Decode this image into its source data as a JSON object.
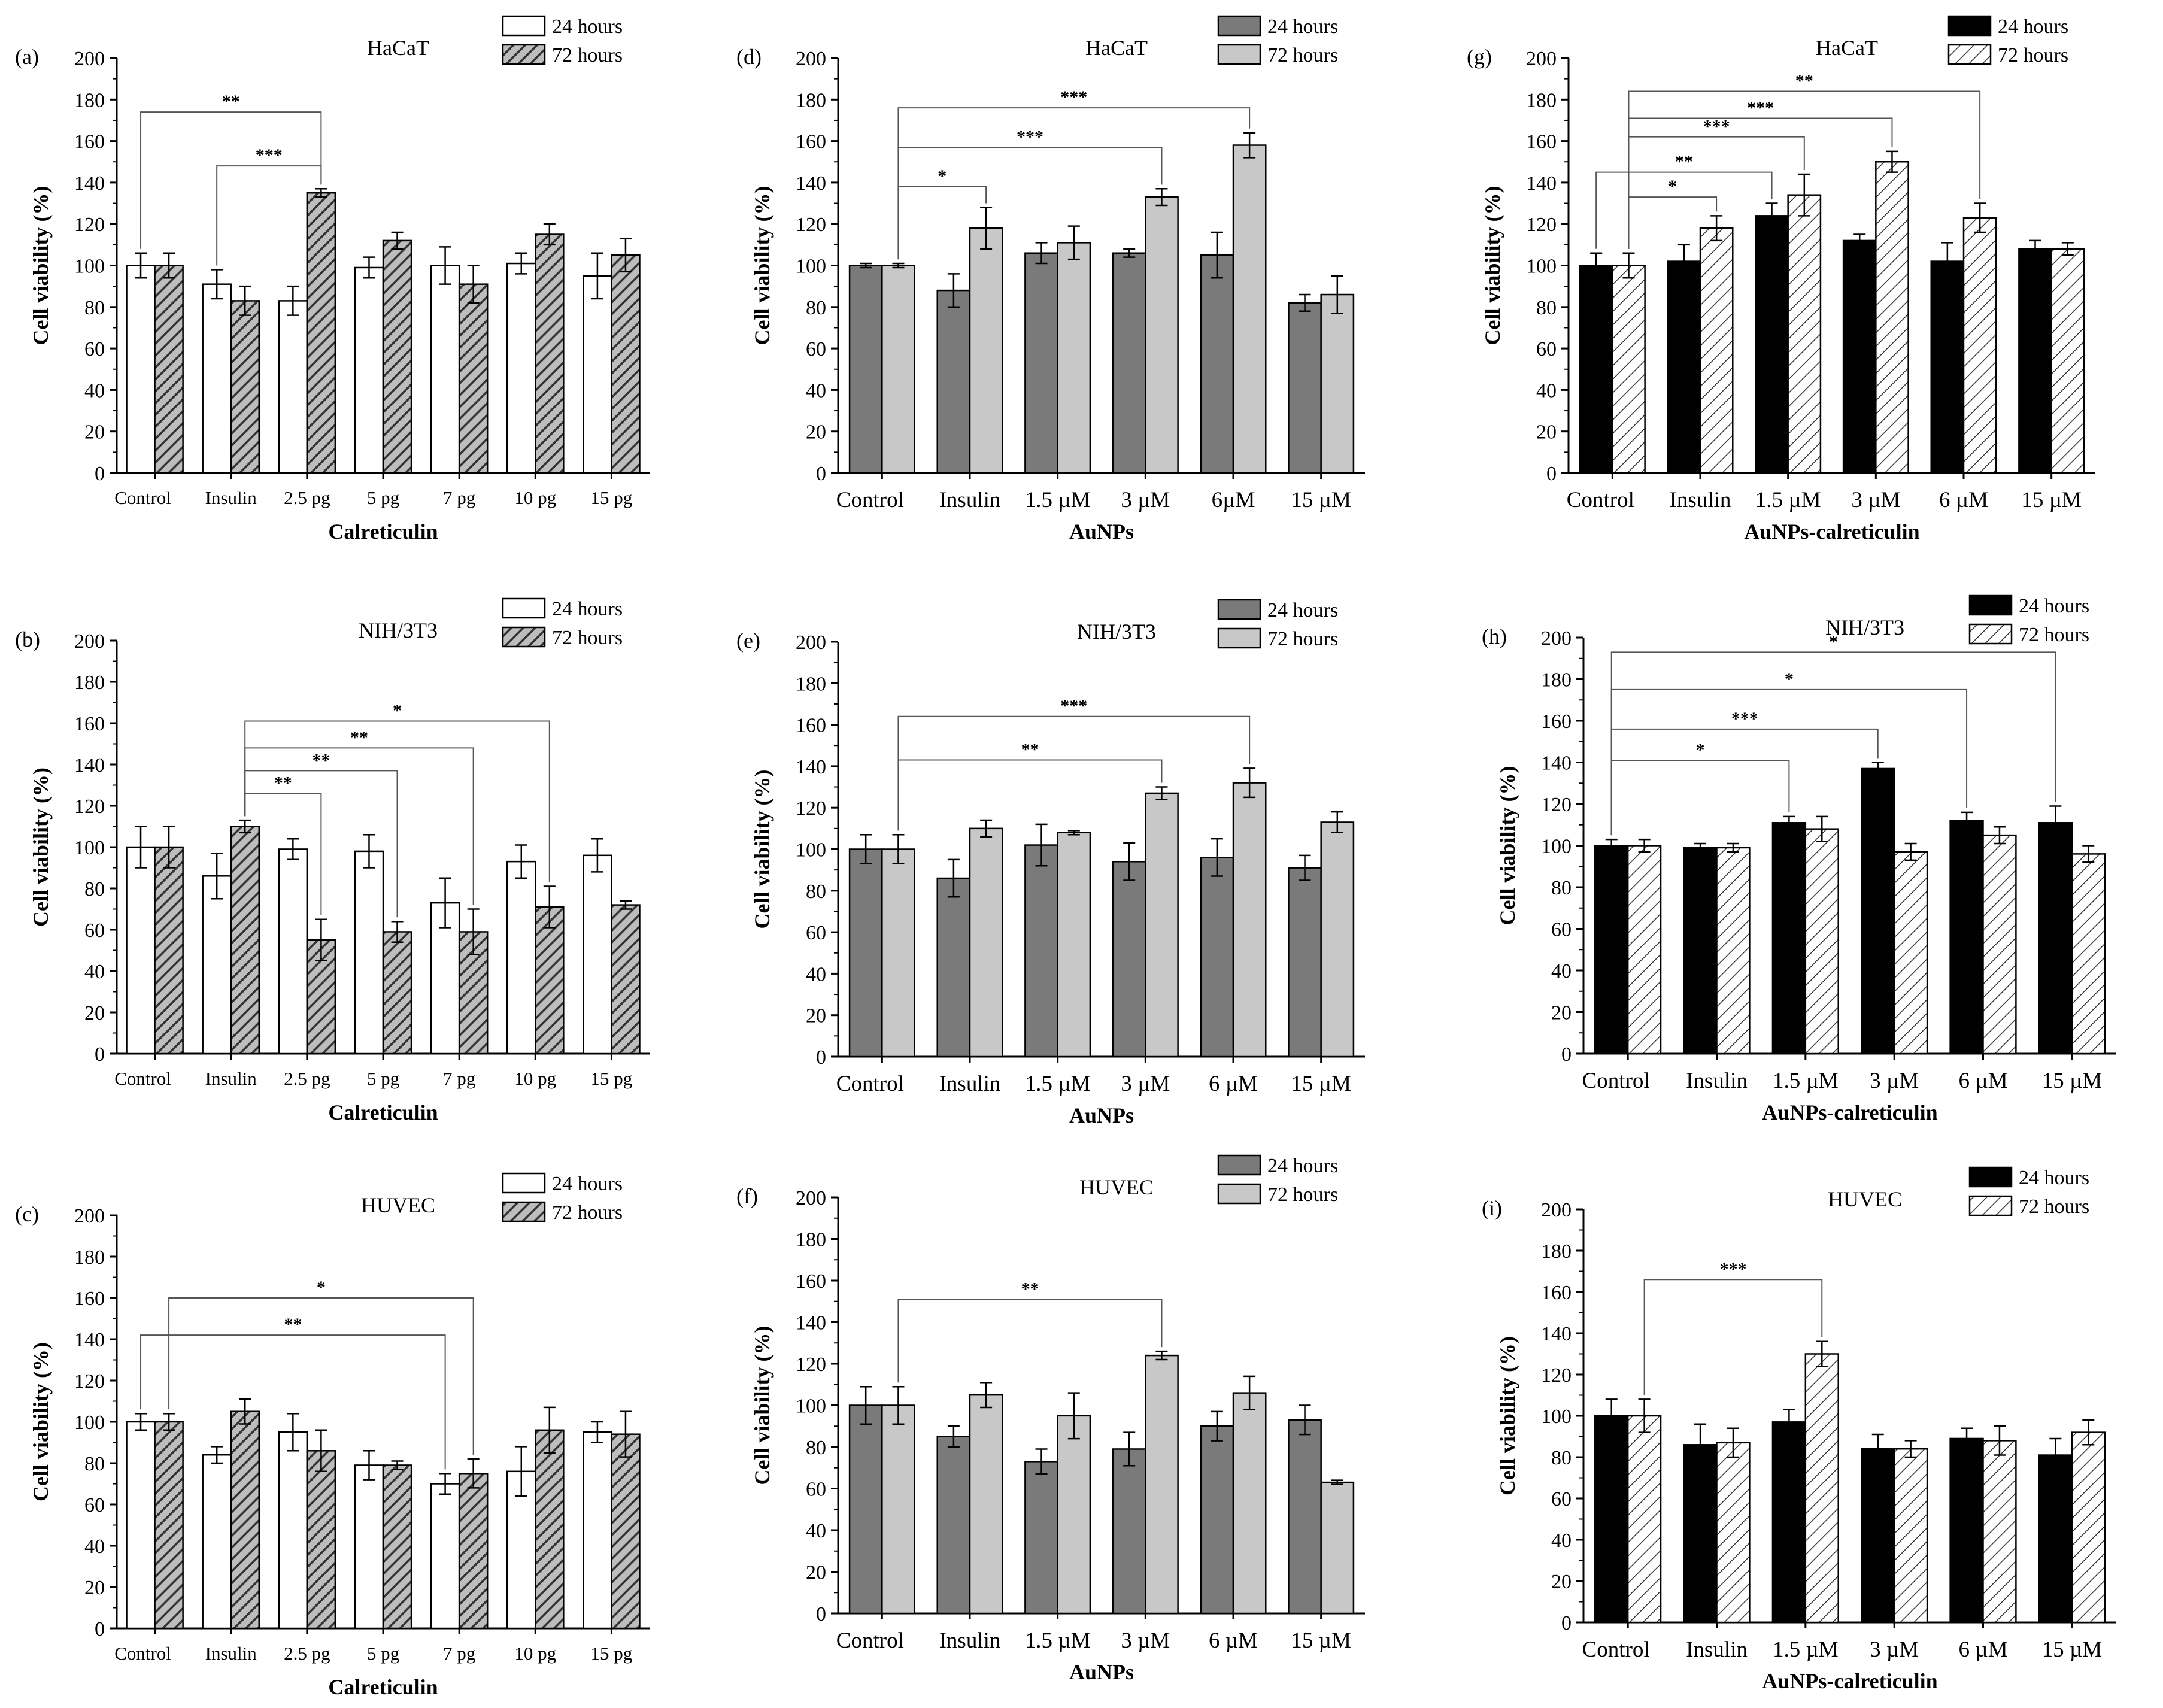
{
  "chart_data": [
    {
      "panel_label": "(a)",
      "title": "HaCaT",
      "type": "bar",
      "fill_style": "white-hatched",
      "xlabel": "Calreticulin",
      "ylabel": "Cell viability (%)",
      "ylim": [
        0,
        200
      ],
      "yticks": [
        "0",
        "20",
        "40",
        "60",
        "80",
        "100",
        "120",
        "140",
        "160",
        "180",
        "200"
      ],
      "categories": [
        "Control",
        "Insulin",
        "2.5 pg",
        "5 pg",
        "7 pg",
        "10 pg",
        "15 pg"
      ],
      "legend": [
        "24 hours",
        "72 hours"
      ],
      "series": [
        {
          "name": "24 hours",
          "values": [
            100,
            91,
            83,
            99,
            100,
            101,
            95
          ],
          "errors": [
            6,
            7,
            7,
            5,
            9,
            5,
            11
          ]
        },
        {
          "name": "72 hours",
          "values": [
            100,
            83,
            135,
            112,
            91,
            115,
            105
          ],
          "errors": [
            6,
            7,
            2,
            4,
            9,
            5,
            8
          ]
        }
      ],
      "annotations": [
        {
          "label": "**",
          "from": [
            0,
            0
          ],
          "to": [
            2,
            1
          ],
          "level": 174
        },
        {
          "label": "***",
          "from": [
            1,
            0
          ],
          "to": [
            2,
            1
          ],
          "level": 148
        }
      ]
    },
    {
      "panel_label": "(b)",
      "title": "NIH/3T3",
      "type": "bar",
      "fill_style": "white-hatched",
      "xlabel": "Calreticulin",
      "ylabel": "Cell viability (%)",
      "ylim": [
        0,
        200
      ],
      "yticks": [
        "0",
        "20",
        "40",
        "60",
        "80",
        "100",
        "120",
        "140",
        "160",
        "180",
        "200"
      ],
      "categories": [
        "Control",
        "Insulin",
        "2.5 pg",
        "5 pg",
        "7 pg",
        "10 pg",
        "15 pg"
      ],
      "legend": [
        "24 hours",
        "72 hours"
      ],
      "series": [
        {
          "name": "24 hours",
          "values": [
            100,
            86,
            99,
            98,
            73,
            93,
            96
          ],
          "errors": [
            10,
            11,
            5,
            8,
            12,
            8,
            8
          ]
        },
        {
          "name": "72 hours",
          "values": [
            100,
            110,
            55,
            59,
            59,
            71,
            72
          ],
          "errors": [
            10,
            3,
            10,
            5,
            11,
            10,
            2
          ]
        }
      ],
      "annotations": [
        {
          "label": "*",
          "from": [
            1,
            1
          ],
          "to": [
            5,
            1
          ],
          "level": 161
        },
        {
          "label": "**",
          "from": [
            1,
            1
          ],
          "to": [
            4,
            1
          ],
          "level": 148
        },
        {
          "label": "**",
          "from": [
            1,
            1
          ],
          "to": [
            3,
            1
          ],
          "level": 137
        },
        {
          "label": "**",
          "from": [
            1,
            1
          ],
          "to": [
            2,
            1
          ],
          "level": 126
        }
      ]
    },
    {
      "panel_label": "(c)",
      "title": "HUVEC",
      "type": "bar",
      "fill_style": "white-hatched",
      "xlabel": "Calreticulin",
      "ylabel": "Cell viability (%)",
      "ylim": [
        0,
        200
      ],
      "yticks": [
        "0",
        "20",
        "40",
        "60",
        "80",
        "100",
        "120",
        "140",
        "160",
        "180",
        "200"
      ],
      "categories": [
        "Control",
        "Insulin",
        "2.5 pg",
        "5 pg",
        "7 pg",
        "10 pg",
        "15 pg"
      ],
      "legend": [
        "24 hours",
        "72 hours"
      ],
      "series": [
        {
          "name": "24 hours",
          "values": [
            100,
            84,
            95,
            79,
            70,
            76,
            95
          ],
          "errors": [
            4,
            4,
            9,
            7,
            5,
            12,
            5
          ]
        },
        {
          "name": "72 hours",
          "values": [
            100,
            105,
            86,
            79,
            75,
            96,
            94
          ],
          "errors": [
            4,
            6,
            10,
            2,
            7,
            11,
            11
          ]
        }
      ],
      "annotations": [
        {
          "label": "*",
          "from": [
            0,
            1
          ],
          "to": [
            4,
            1
          ],
          "level": 160
        },
        {
          "label": "**",
          "from": [
            0,
            0
          ],
          "to": [
            4,
            0
          ],
          "level": 142
        }
      ]
    },
    {
      "panel_label": "(d)",
      "title": "HaCaT",
      "type": "bar",
      "fill_style": "gray",
      "xlabel": "AuNPs",
      "ylabel": "Cell viability (%)",
      "ylim": [
        0,
        200
      ],
      "yticks": [
        "0",
        "20",
        "40",
        "60",
        "80",
        "100",
        "120",
        "140",
        "160",
        "180",
        "200"
      ],
      "categories": [
        "Control",
        "Insulin",
        "1.5 µM",
        "3 µM",
        "6µM",
        "15 µM"
      ],
      "legend": [
        "24 hours",
        "72 hours"
      ],
      "series": [
        {
          "name": "24 hours",
          "values": [
            100,
            88,
            106,
            106,
            105,
            82
          ],
          "errors": [
            1,
            8,
            5,
            2,
            11,
            4
          ]
        },
        {
          "name": "72 hours",
          "values": [
            100,
            118,
            111,
            133,
            158,
            86
          ],
          "errors": [
            1,
            10,
            8,
            4,
            6,
            9
          ]
        }
      ],
      "annotations": [
        {
          "label": "***",
          "from": [
            0,
            1
          ],
          "to": [
            4,
            1
          ],
          "level": 176
        },
        {
          "label": "***",
          "from": [
            0,
            1
          ],
          "to": [
            3,
            1
          ],
          "level": 157
        },
        {
          "label": "*",
          "from": [
            0,
            1
          ],
          "to": [
            1,
            1
          ],
          "level": 138
        }
      ]
    },
    {
      "panel_label": "(e)",
      "title": "NIH/3T3",
      "type": "bar",
      "fill_style": "gray",
      "xlabel": "AuNPs",
      "ylabel": "Cell viability (%)",
      "ylim": [
        0,
        200
      ],
      "yticks": [
        "0",
        "20",
        "40",
        "60",
        "80",
        "100",
        "120",
        "140",
        "160",
        "180",
        "200"
      ],
      "categories": [
        "Control",
        "Insulin",
        "1.5 µM",
        "3 µM",
        "6 µM",
        "15 µM"
      ],
      "legend": [
        "24 hours",
        "72 hours"
      ],
      "series": [
        {
          "name": "24 hours",
          "values": [
            100,
            86,
            102,
            94,
            96,
            91
          ],
          "errors": [
            7,
            9,
            10,
            9,
            9,
            6
          ]
        },
        {
          "name": "72 hours",
          "values": [
            100,
            110,
            108,
            127,
            132,
            113
          ],
          "errors": [
            7,
            4,
            1,
            3,
            7,
            5
          ]
        }
      ],
      "annotations": [
        {
          "label": "***",
          "from": [
            0,
            1
          ],
          "to": [
            4,
            1
          ],
          "level": 164
        },
        {
          "label": "**",
          "from": [
            0,
            1
          ],
          "to": [
            3,
            1
          ],
          "level": 143
        }
      ]
    },
    {
      "panel_label": "(f)",
      "title": "HUVEC",
      "type": "bar",
      "fill_style": "gray",
      "xlabel": "AuNPs",
      "ylabel": "Cell viability (%)",
      "ylim": [
        0,
        200
      ],
      "yticks": [
        "0",
        "20",
        "40",
        "60",
        "80",
        "100",
        "120",
        "140",
        "160",
        "180",
        "200"
      ],
      "categories": [
        "Control",
        "Insulin",
        "1.5 µM",
        "3 µM",
        "6 µM",
        "15 µM"
      ],
      "legend": [
        "24 hours",
        "72 hours"
      ],
      "series": [
        {
          "name": "24 hours",
          "values": [
            100,
            85,
            73,
            79,
            90,
            93
          ],
          "errors": [
            9,
            5,
            6,
            8,
            7,
            7
          ]
        },
        {
          "name": "72 hours",
          "values": [
            100,
            105,
            95,
            124,
            106,
            63
          ],
          "errors": [
            9,
            6,
            11,
            2,
            8,
            1
          ]
        }
      ],
      "annotations": [
        {
          "label": "**",
          "from": [
            0,
            1
          ],
          "to": [
            3,
            1
          ],
          "level": 151
        }
      ]
    },
    {
      "panel_label": "(g)",
      "title": "HaCaT",
      "type": "bar",
      "fill_style": "black-hatched",
      "xlabel": "AuNPs-calreticulin",
      "ylabel": "Cell viability (%)",
      "ylim": [
        0,
        200
      ],
      "yticks": [
        "0",
        "20",
        "40",
        "60",
        "80",
        "100",
        "120",
        "140",
        "160",
        "180",
        "200"
      ],
      "categories": [
        "Control",
        "Insulin",
        "1.5 µM",
        "3 µM",
        "6 µM",
        "15 µM"
      ],
      "legend": [
        "24 hours",
        "72 hours"
      ],
      "series": [
        {
          "name": "24 hours",
          "values": [
            100,
            102,
            124,
            112,
            102,
            108
          ],
          "errors": [
            6,
            8,
            6,
            3,
            9,
            4
          ]
        },
        {
          "name": "72 hours",
          "values": [
            100,
            118,
            134,
            150,
            123,
            108
          ],
          "errors": [
            6,
            6,
            10,
            5,
            7,
            3
          ]
        }
      ],
      "annotations": [
        {
          "label": "**",
          "from": [
            0,
            1
          ],
          "to": [
            4,
            1
          ],
          "level": 184
        },
        {
          "label": "***",
          "from": [
            0,
            1
          ],
          "to": [
            3,
            1
          ],
          "level": 171
        },
        {
          "label": "***",
          "from": [
            0,
            1
          ],
          "to": [
            2,
            1
          ],
          "level": 162
        },
        {
          "label": "**",
          "from": [
            0,
            0
          ],
          "to": [
            2,
            0
          ],
          "level": 145
        },
        {
          "label": "*",
          "from": [
            0,
            1
          ],
          "to": [
            1,
            1
          ],
          "level": 133
        }
      ]
    },
    {
      "panel_label": "(h)",
      "title": "NIH/3T3",
      "type": "bar",
      "fill_style": "black-hatched",
      "xlabel": "AuNPs-calreticulin",
      "ylabel": "Cell viability (%)",
      "ylim": [
        0,
        200
      ],
      "yticks": [
        "0",
        "20",
        "40",
        "60",
        "80",
        "100",
        "120",
        "140",
        "160",
        "180",
        "200"
      ],
      "categories": [
        "Control",
        "Insulin",
        "1.5 µM",
        "3 µM",
        "6 µM",
        "15 µM"
      ],
      "legend": [
        "24 hours",
        "72 hours"
      ],
      "series": [
        {
          "name": "24 hours",
          "values": [
            100,
            99,
            111,
            137,
            112,
            111
          ],
          "errors": [
            3,
            2,
            3,
            3,
            4,
            8
          ]
        },
        {
          "name": "72 hours",
          "values": [
            100,
            99,
            108,
            97,
            105,
            96
          ],
          "errors": [
            3,
            2,
            6,
            4,
            4,
            4
          ]
        }
      ],
      "annotations": [
        {
          "label": "*",
          "from": [
            0,
            0
          ],
          "to": [
            5,
            0
          ],
          "level": 193
        },
        {
          "label": "*",
          "from": [
            0,
            0
          ],
          "to": [
            4,
            0
          ],
          "level": 175
        },
        {
          "label": "***",
          "from": [
            0,
            0
          ],
          "to": [
            3,
            0
          ],
          "level": 156
        },
        {
          "label": "*",
          "from": [
            0,
            0
          ],
          "to": [
            2,
            0
          ],
          "level": 141
        }
      ]
    },
    {
      "panel_label": "(i)",
      "title": "HUVEC",
      "type": "bar",
      "fill_style": "black-hatched",
      "xlabel": "AuNPs-calreticulin",
      "ylabel": "Cell viability (%)",
      "ylim": [
        0,
        200
      ],
      "yticks": [
        "0",
        "20",
        "40",
        "60",
        "80",
        "100",
        "120",
        "140",
        "160",
        "180",
        "200"
      ],
      "categories": [
        "Control",
        "Insulin",
        "1.5 µM",
        "3 µM",
        "6 µM",
        "15 µM"
      ],
      "legend": [
        "24 hours",
        "72 hours"
      ],
      "series": [
        {
          "name": "24 hours",
          "values": [
            100,
            86,
            97,
            84,
            89,
            81
          ],
          "errors": [
            8,
            10,
            6,
            7,
            5,
            8
          ]
        },
        {
          "name": "72 hours",
          "values": [
            100,
            87,
            130,
            84,
            88,
            92
          ],
          "errors": [
            8,
            7,
            6,
            4,
            7,
            6
          ]
        }
      ],
      "annotations": [
        {
          "label": "***",
          "from": [
            0,
            1
          ],
          "to": [
            2,
            1
          ],
          "level": 166
        }
      ]
    }
  ]
}
